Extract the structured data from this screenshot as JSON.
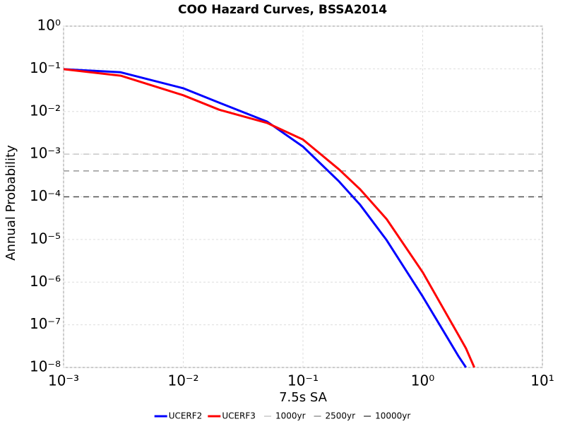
{
  "chart_data": {
    "type": "line",
    "title": "COO Hazard Curves, BSSA2014",
    "x_label": "7.5s SA",
    "y_label": "Annual Probability",
    "x_scale": "log",
    "y_scale": "log",
    "grid": true,
    "legend": "bottom",
    "xlim": [
      0.001,
      10
    ],
    "ylim": [
      1e-08,
      1
    ],
    "xticks": [
      {
        "value": 0.001,
        "label": "10⁻³"
      },
      {
        "value": 0.01,
        "label": "10⁻²"
      },
      {
        "value": 0.1,
        "label": "10⁻¹"
      },
      {
        "value": 1,
        "label": "10⁰"
      },
      {
        "value": 10,
        "label": "10¹"
      }
    ],
    "yticks": [
      {
        "value": 1e-08,
        "label": "10⁻⁸"
      },
      {
        "value": 1e-07,
        "label": "10⁻⁷"
      },
      {
        "value": 1e-06,
        "label": "10⁻⁶"
      },
      {
        "value": 1e-05,
        "label": "10⁻⁵"
      },
      {
        "value": 0.0001,
        "label": "10⁻⁴"
      },
      {
        "value": 0.001,
        "label": "10⁻³"
      },
      {
        "value": 0.01,
        "label": "10⁻²"
      },
      {
        "value": 0.1,
        "label": "10⁻¹"
      },
      {
        "value": 1,
        "label": "10⁰"
      }
    ],
    "x": [
      0.001,
      0.003,
      0.01,
      0.02,
      0.05,
      0.1,
      0.2,
      0.3,
      0.5,
      1,
      2,
      2.3,
      2.7
    ],
    "series": [
      {
        "name": "UCERF2",
        "color": "#0000ff",
        "values": [
          0.098,
          0.083,
          0.035,
          0.016,
          0.0058,
          0.0015,
          0.00023,
          6.5e-05,
          9.6e-06,
          4.6e-07,
          1.8e-08,
          1e-08,
          null
        ]
      },
      {
        "name": "UCERF3",
        "color": "#ff0000",
        "values": [
          0.098,
          0.069,
          0.024,
          0.011,
          0.0054,
          0.0022,
          0.00044,
          0.00015,
          3e-05,
          1.7e-06,
          5.6e-08,
          2.8e-08,
          1e-08
        ]
      }
    ],
    "reference_lines": [
      {
        "name": "1000yr",
        "value": 0.001,
        "color": "#c8c8c8"
      },
      {
        "name": "2500yr",
        "value": 0.000404,
        "color": "#969696"
      },
      {
        "name": "10000yr",
        "value": 0.0001,
        "color": "#505050"
      }
    ]
  }
}
